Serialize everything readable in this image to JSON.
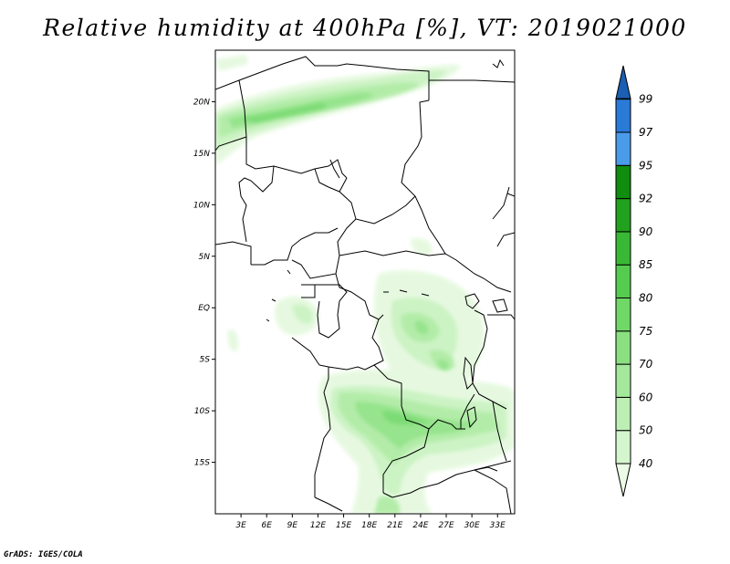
{
  "title": "Relative humidity at 400hPa [%], VT: 2019021000",
  "credit": "GrADS: IGES/COLA",
  "map": {
    "lon_range": [
      0,
      35
    ],
    "lat_range": [
      -20,
      25
    ],
    "lat_ticks": [
      {
        "value": 20,
        "label": "20N"
      },
      {
        "value": 15,
        "label": "15N"
      },
      {
        "value": 10,
        "label": "10N"
      },
      {
        "value": 5,
        "label": "5N"
      },
      {
        "value": 0,
        "label": "EQ"
      },
      {
        "value": -5,
        "label": "5S"
      },
      {
        "value": -10,
        "label": "10S"
      },
      {
        "value": -15,
        "label": "15S"
      }
    ],
    "lon_ticks": [
      {
        "value": 3,
        "label": "3E"
      },
      {
        "value": 6,
        "label": "6E"
      },
      {
        "value": 9,
        "label": "9E"
      },
      {
        "value": 12,
        "label": "12E"
      },
      {
        "value": 15,
        "label": "15E"
      },
      {
        "value": 18,
        "label": "18E"
      },
      {
        "value": 21,
        "label": "21E"
      },
      {
        "value": 24,
        "label": "24E"
      },
      {
        "value": 27,
        "label": "27E"
      },
      {
        "value": 30,
        "label": "30E"
      },
      {
        "value": 33,
        "label": "33E"
      }
    ]
  },
  "colorbar": {
    "labels": [
      "40",
      "50",
      "60",
      "70",
      "75",
      "80",
      "85",
      "90",
      "92",
      "95",
      "97",
      "99"
    ],
    "colors": [
      "#ebfbe6",
      "#d4f5cd",
      "#bdefb4",
      "#a3e89b",
      "#8ae081",
      "#6fd867",
      "#55cc4f",
      "#39b835",
      "#21a11e",
      "#108c0f",
      "#4a9bea",
      "#2a7ad8",
      "#1a5fb4"
    ]
  }
}
